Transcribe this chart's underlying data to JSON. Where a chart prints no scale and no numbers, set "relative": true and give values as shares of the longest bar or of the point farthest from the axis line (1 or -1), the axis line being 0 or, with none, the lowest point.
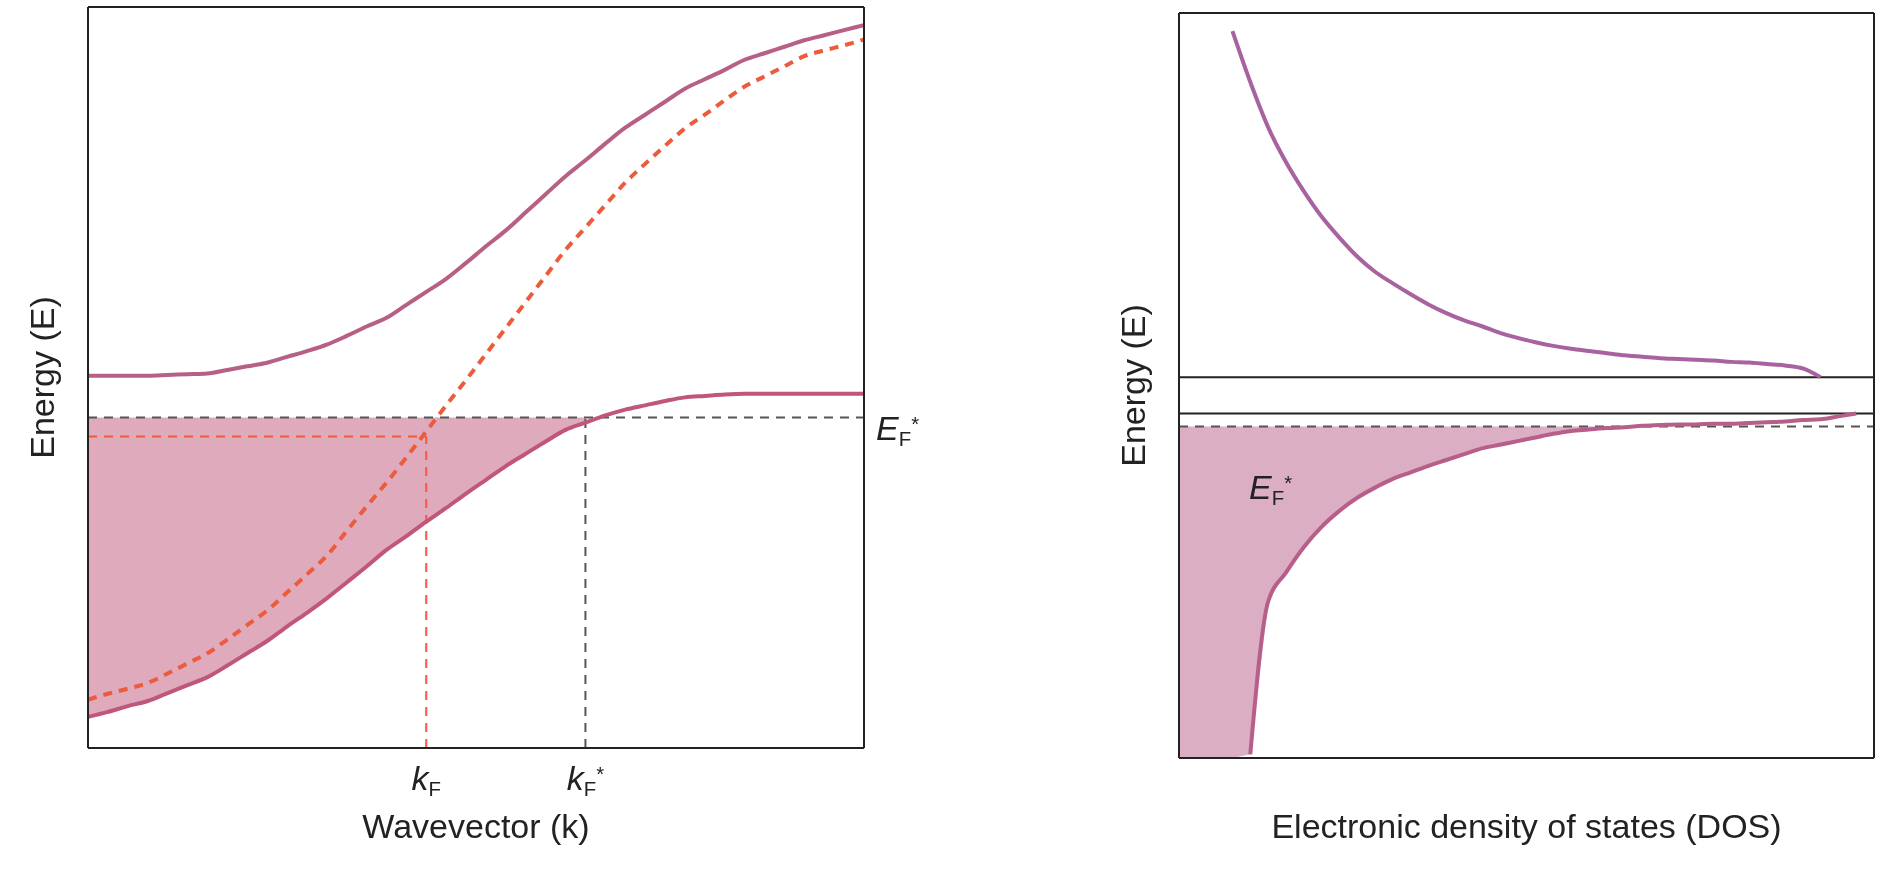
{
  "chart_data": [
    {
      "type": "line",
      "xlabel": "Wavevector (k)",
      "ylabel": "Energy (E)",
      "relative": true,
      "tick_labels": "x",
      "marker": "none",
      "categories": [
        null,
        null,
        null,
        null,
        null,
        null,
        null,
        null,
        null,
        null,
        null,
        null,
        null,
        null,
        null,
        null,
        null,
        "k$_{F}$",
        null,
        null,
        null,
        null,
        null,
        null,
        null,
        "k$_{F}$$^{*}$",
        null,
        null,
        null,
        null,
        null,
        null,
        null,
        null,
        null,
        null,
        null,
        null,
        null,
        null
      ],
      "series": [
        {
          "color": "#b85f86",
          "values": [
            0.515,
            0.515,
            0.515,
            0.515,
            0.516,
            0.517,
            0.518,
            0.523,
            0.528,
            0.533,
            0.541,
            0.549,
            0.558,
            0.57,
            0.583,
            0.595,
            0.613,
            0.631,
            0.649,
            0.671,
            0.694,
            0.716,
            0.741,
            0.766,
            0.791,
            0.813,
            0.836,
            0.858,
            0.876,
            0.894,
            0.912,
            0.925,
            0.938,
            0.952,
            0.961,
            0.97,
            0.979,
            0.986,
            0.993,
            1
          ]
        },
        {
          "color": "#ec5b3c",
          "line_style": "dashed",
          "values": [
            0.067,
            0.075,
            0.082,
            0.09,
            0.103,
            0.117,
            0.131,
            0.15,
            0.17,
            0.19,
            0.215,
            0.24,
            0.266,
            0.3,
            0.334,
            0.367,
            0.402,
            0.438,
            0.474,
            0.509,
            0.545,
            0.581,
            0.617,
            0.653,
            0.689,
            0.72,
            0.751,
            0.782,
            0.808,
            0.833,
            0.857,
            0.876,
            0.896,
            0.915,
            0.929,
            0.943,
            0.957,
            0.965,
            0.972,
            0.98
          ]
        },
        {
          "color": "#c0567a",
          "values": [
            0.043,
            0.05,
            0.058,
            0.065,
            0.076,
            0.087,
            0.098,
            0.114,
            0.131,
            0.148,
            0.168,
            0.187,
            0.207,
            0.229,
            0.251,
            0.274,
            0.293,
            0.313,
            0.332,
            0.352,
            0.371,
            0.39,
            0.407,
            0.424,
            0.44,
            0.45,
            0.46,
            0.468,
            0.474,
            0.48,
            0.485,
            0.487,
            0.489,
            0.49,
            0.49,
            0.49,
            0.49,
            0.49,
            0.49,
            0.49
          ],
          "lower": [
            0.043,
            0.05,
            0.058,
            0.065,
            0.076,
            0.087,
            0.098,
            0.114,
            0.131,
            0.148,
            0.168,
            0.187,
            0.207,
            0.229,
            0.251,
            0.274,
            0.293,
            0.313,
            0.332,
            0.352,
            0.371,
            0.39,
            0.407,
            0.424,
            0.44,
            0.45,
            null,
            null,
            null,
            null,
            null,
            null,
            null,
            null,
            null,
            null,
            null,
            null,
            null,
            null
          ],
          "upper": [
            0.457,
            0.457,
            0.457,
            0.457,
            0.457,
            0.457,
            0.457,
            0.457,
            0.457,
            0.457,
            0.457,
            0.457,
            0.457,
            0.457,
            0.457,
            0.457,
            0.457,
            0.457,
            0.457,
            0.457,
            0.457,
            0.457,
            0.457,
            0.457,
            0.457,
            0.457,
            null,
            null,
            null,
            null,
            null,
            null,
            null,
            null,
            null,
            null,
            null,
            null,
            null,
            null
          ]
        }
      ],
      "ref_lines": [
        {
          "axis": "y",
          "value": 0.457,
          "label": "E$_{F}$$^{*}$",
          "color": "#555555",
          "line_style": "dashed"
        },
        {
          "axis": "y",
          "value": 0.431,
          "color": "#ec5b3c",
          "line_style": "dashed"
        },
        {
          "axis": "x",
          "value": "k$_{F}$",
          "color": "#ec5b3c",
          "line_style": "dashed"
        },
        {
          "axis": "x",
          "value": "k$_{F}$$^{*}$",
          "color": "#555555",
          "line_style": "dashed"
        }
      ]
    },
    {
      "type": "line",
      "xlabel": "Electronic density of states (DOS)",
      "ylabel": "Energy (E)",
      "relative": true,
      "tick_labels": false,
      "marker": "none",
      "categories": [
        null,
        null,
        null,
        null,
        null,
        null,
        null,
        null,
        null,
        null,
        null,
        null,
        null,
        null,
        null,
        null,
        null,
        null,
        null,
        null,
        null,
        null,
        null,
        null,
        null,
        null,
        null,
        null,
        null,
        null,
        null,
        null,
        null,
        null,
        null,
        null,
        null,
        null,
        null,
        null
      ],
      "series": [
        {
          "color": "#a862a0",
          "values": [
            null,
            null,
            null,
            1,
            0.93,
            0.868,
            0.82,
            0.78,
            0.745,
            0.716,
            0.69,
            0.669,
            0.653,
            0.638,
            0.624,
            0.612,
            0.602,
            0.594,
            0.585,
            0.578,
            0.572,
            0.567,
            0.563,
            0.56,
            0.557,
            0.554,
            0.552,
            0.55,
            0.549,
            0.548,
            0.547,
            0.545,
            0.544,
            0.542,
            0.54,
            0.536,
            0.524,
            null,
            null,
            null
          ]
        },
        {
          "color": "#b85e8a",
          "values": [
            null,
            null,
            null,
            null,
            0.005,
            0.215,
            0.255,
            0.29,
            0.318,
            0.34,
            0.358,
            0.372,
            0.384,
            0.393,
            0.402,
            0.41,
            0.418,
            0.426,
            0.431,
            0.436,
            0.441,
            0.446,
            0.45,
            0.452,
            0.454,
            0.455,
            0.457,
            0.458,
            0.459,
            0.459,
            0.46,
            0.46,
            0.461,
            0.462,
            0.463,
            0.465,
            0.466,
            0.47,
            0.474,
            null
          ],
          "lower": [
            0,
            0,
            0,
            0,
            0.005,
            0.215,
            0.255,
            0.29,
            0.318,
            0.34,
            0.358,
            0.372,
            0.384,
            0.393,
            0.402,
            0.41,
            0.418,
            0.426,
            0.431,
            0.436,
            0.441,
            0.446,
            0.45,
            0.452,
            0.454,
            0.455,
            null,
            null,
            null,
            null,
            null,
            null,
            null,
            null,
            null,
            null,
            null,
            null,
            null,
            null
          ],
          "upper": [
            0.456,
            0.456,
            0.456,
            0.456,
            0.456,
            0.456,
            0.456,
            0.456,
            0.456,
            0.456,
            0.456,
            0.456,
            0.456,
            0.456,
            0.456,
            0.456,
            0.456,
            0.456,
            0.456,
            0.456,
            0.456,
            0.456,
            0.456,
            0.456,
            0.456,
            0.456,
            null,
            null,
            null,
            null,
            null,
            null,
            null,
            null,
            null,
            null,
            null,
            null,
            null,
            null
          ]
        }
      ],
      "ref_lines": [
        {
          "axis": "y",
          "value": 0.524,
          "color": "#222222",
          "line_style": "solid"
        },
        {
          "axis": "y",
          "value": 0.474,
          "color": "#222222",
          "line_style": "solid"
        },
        {
          "axis": "y",
          "value": 0.456,
          "label": "E$_{F}$$^{*}$",
          "color": "#555555",
          "line_style": "dashed"
        }
      ]
    }
  ]
}
